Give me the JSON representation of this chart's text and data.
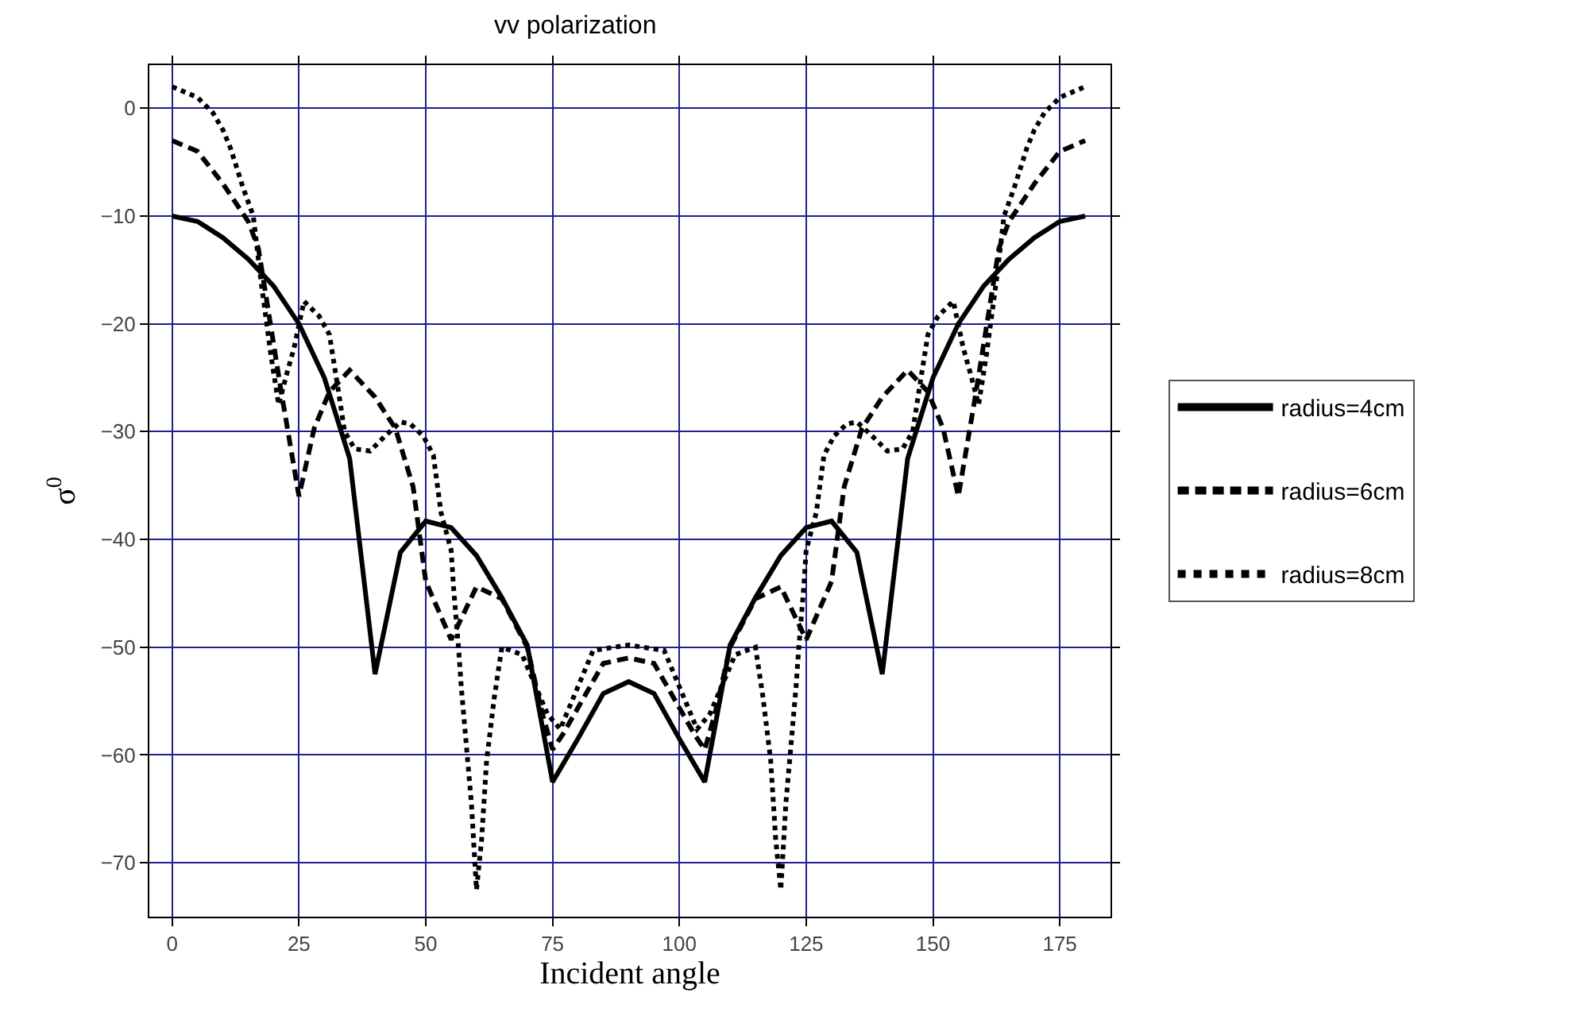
{
  "chart_data": {
    "type": "line",
    "title": "vv polarization",
    "xlabel": "Incident angle",
    "ylabel": "σ$^{0}$",
    "xlim": [
      -4.5,
      185
    ],
    "ylim": [
      -75,
      4
    ],
    "xticks": [
      0,
      25,
      50,
      75,
      100,
      125,
      150,
      175
    ],
    "yticks": [
      0,
      -10,
      -20,
      -30,
      -40,
      -50,
      -60,
      -70
    ],
    "grid": true,
    "legend": "right",
    "marker": "none",
    "series": [
      {
        "name": "radius=4cm",
        "color": "#000000",
        "line_style": "solid",
        "x": [
          0,
          5,
          10,
          15,
          20,
          25,
          30,
          35,
          40,
          45,
          50,
          55,
          60,
          65,
          70,
          75,
          80,
          85,
          90,
          95,
          100,
          105,
          110,
          115,
          120,
          125,
          130,
          135,
          140,
          145,
          150,
          155,
          160,
          165,
          170,
          175,
          180
        ],
        "values": [
          -10,
          -10.5,
          -12,
          -14,
          -16.5,
          -20,
          -25,
          -32.5,
          -52.5,
          -41.2,
          -38.3,
          -38.9,
          -41.5,
          -45.4,
          -49.8,
          -62.5,
          -58.5,
          -54.3,
          -53.2,
          -54.3,
          -58.5,
          -62.5,
          -49.8,
          -45.4,
          -41.5,
          -38.9,
          -38.3,
          -41.2,
          -52.5,
          -32.5,
          -25,
          -20,
          -16.5,
          -14,
          -12,
          -10.5,
          -10
        ]
      },
      {
        "name": "radius=6cm",
        "color": "#000000",
        "line_style": "dashed",
        "x": [
          0,
          5,
          10,
          15,
          17,
          21.5,
          25,
          28,
          31,
          35,
          40,
          44,
          47.5,
          50,
          55,
          60,
          65,
          70,
          73,
          75,
          77,
          85,
          90,
          95,
          103,
          105,
          107,
          110,
          115,
          120,
          125,
          130,
          132.5,
          136,
          140,
          145,
          149,
          152,
          155,
          158.5,
          163,
          165,
          170,
          175,
          180
        ],
        "values": [
          -3,
          -4,
          -7,
          -10.5,
          -13,
          -26.3,
          -36,
          -29.7,
          -26.3,
          -24.3,
          -26.8,
          -29.7,
          -35.1,
          -43.9,
          -49.3,
          -44.4,
          -45.5,
          -50,
          -56.2,
          -59.5,
          -58.1,
          -51.5,
          -51,
          -51.5,
          -58.1,
          -59.5,
          -56.2,
          -50,
          -45.5,
          -44.4,
          -49.3,
          -43.9,
          -35.1,
          -29.7,
          -26.8,
          -24.3,
          -26.3,
          -29.7,
          -36,
          -26.3,
          -13,
          -10.5,
          -7,
          -4,
          -3
        ]
      },
      {
        "name": "radius=8cm",
        "color": "#000000",
        "line_style": "dotted",
        "x": [
          0,
          5,
          8,
          10,
          11.5,
          14,
          16,
          17.5,
          19.5,
          21,
          22.5,
          24,
          26,
          29,
          31,
          32.5,
          34,
          36,
          39,
          42,
          45,
          47,
          49.5,
          51.5,
          53,
          55,
          55.5,
          56.5,
          57,
          58,
          59,
          60,
          61,
          62,
          63.5,
          65,
          69,
          74,
          76.5,
          83,
          90,
          97,
          103.5,
          106,
          111,
          115,
          116.5,
          118,
          119,
          120,
          121,
          122,
          123,
          123.5,
          124.5,
          125,
          127,
          128.5,
          130.5,
          133,
          135,
          138,
          141,
          144,
          146,
          147.5,
          149,
          151,
          154,
          156,
          157.5,
          159,
          160.5,
          162.5,
          164,
          166,
          168.5,
          170,
          172,
          175,
          180
        ],
        "values": [
          2,
          1,
          -0.4,
          -2,
          -3.7,
          -7.4,
          -10,
          -16,
          -23,
          -27.5,
          -24.8,
          -22.3,
          -17.9,
          -19.3,
          -21,
          -25.4,
          -30,
          -31.6,
          -31.8,
          -30.4,
          -29.1,
          -29.3,
          -30.4,
          -32.2,
          -37.5,
          -41,
          -44.6,
          -50.3,
          -53.7,
          -59.1,
          -64.5,
          -72.5,
          -67.9,
          -60.5,
          -54.7,
          -50,
          -50.7,
          -56.2,
          -57.6,
          -50.3,
          -49.8,
          -50.3,
          -57.6,
          -56.2,
          -50.7,
          -50,
          -54.7,
          -60.5,
          -67.9,
          -72.5,
          -64.5,
          -59.1,
          -53.7,
          -50.3,
          -44.6,
          -41,
          -37.5,
          -32.2,
          -30.4,
          -29.3,
          -29.1,
          -30.4,
          -31.8,
          -31.6,
          -30,
          -25.4,
          -21,
          -19.3,
          -17.9,
          -22.3,
          -24.8,
          -27.5,
          -23,
          -16,
          -10,
          -7.4,
          -3.7,
          -2,
          -0.4,
          1,
          2
        ]
      }
    ]
  }
}
